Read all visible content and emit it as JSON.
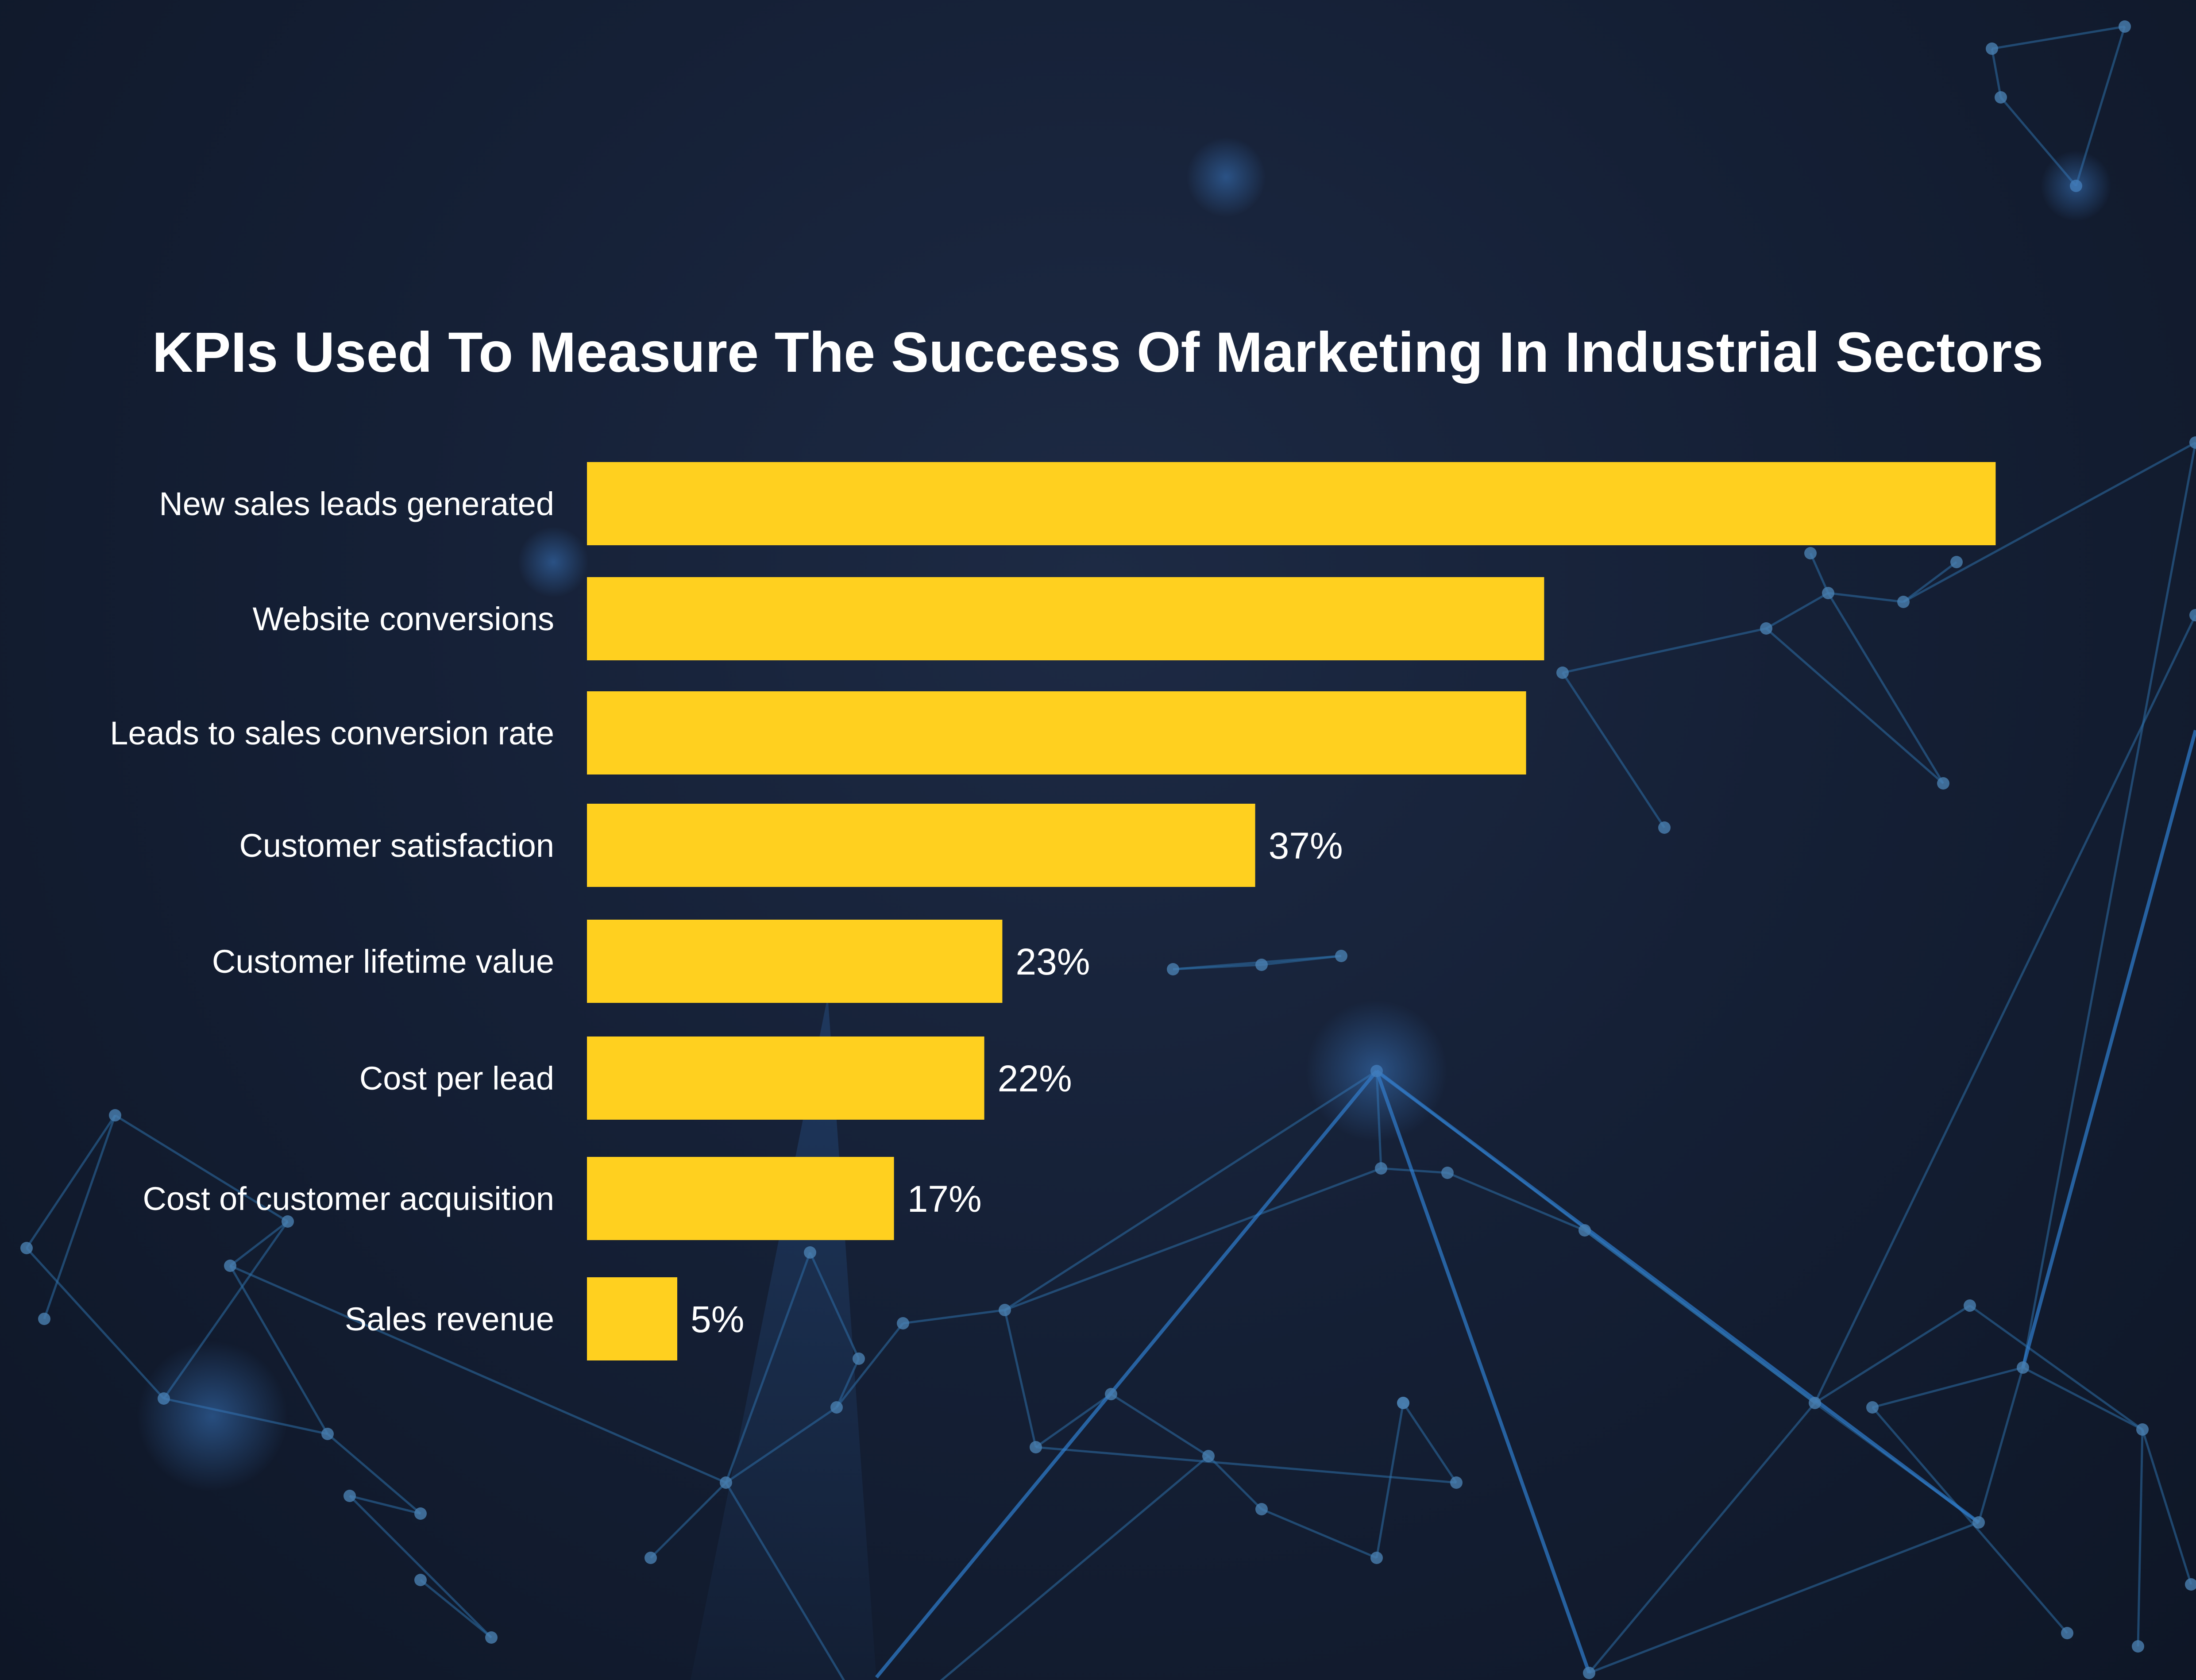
{
  "chart_data": {
    "type": "bar",
    "orientation": "horizontal",
    "title": "KPIs Used To Measure The Success Of Marketing In Industrial Sectors",
    "categories": [
      "New sales leads generated",
      "Website conversions",
      "Leads to sales conversion rate",
      "Customer satisfaction",
      "Customer lifetime value",
      "Cost per lead",
      "Cost of customer acquisition",
      "Sales revenue"
    ],
    "values": [
      78,
      53,
      52,
      37,
      23,
      22,
      17,
      5
    ],
    "value_labels": [
      "",
      "",
      "",
      "37%",
      "23%",
      "22%",
      "17%",
      "5%"
    ],
    "unit": "%",
    "xlim": [
      0,
      100
    ],
    "grid": false,
    "legend": "none",
    "colors": {
      "bar": "#FFD01F",
      "text": "#FFFFFF",
      "background": "#152036",
      "network_line": "#2E6FA8",
      "network_node": "#4A7FB0"
    }
  }
}
